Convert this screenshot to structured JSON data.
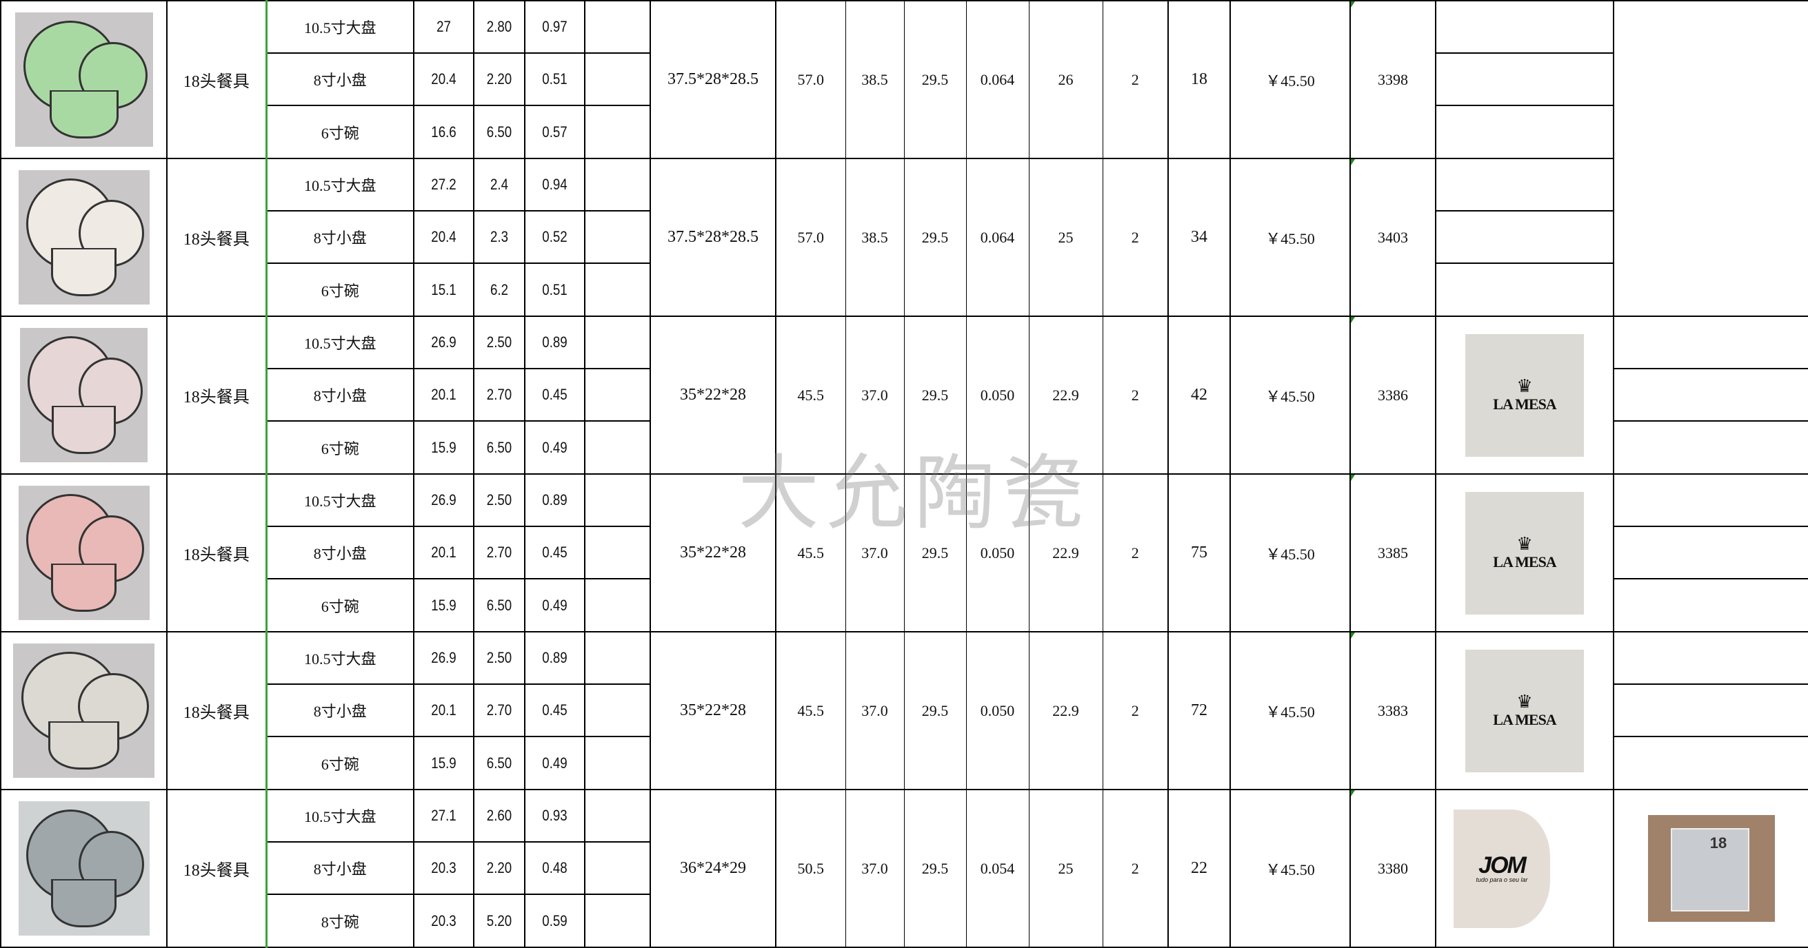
{
  "watermark": "大允陶瓷",
  "colors": {
    "item_border": "#3aa43a",
    "comment_marker": "#1a8a1a"
  },
  "groups": [
    {
      "photo_color": "#a9d9a3",
      "name": "18头餐具",
      "items": [
        {
          "name": "10.5寸大盘",
          "a": "27",
          "b": "2.80",
          "c": "0.97"
        },
        {
          "name": "8寸小盘",
          "a": "20.4",
          "b": "2.20",
          "c": "0.51"
        },
        {
          "name": "6寸碗",
          "a": "16.6",
          "b": "6.50",
          "c": "0.57"
        }
      ],
      "carton": "37.5*28*28.5",
      "v1": "57.0",
      "v2": "38.5",
      "v3": "29.5",
      "cbm": "0.064",
      "weight": "26",
      "qty": "2",
      "stock": "18",
      "price": "￥45.50",
      "code": "3398",
      "logo": null,
      "extra": null
    },
    {
      "photo_color": "#efeae4",
      "name": "18头餐具",
      "items": [
        {
          "name": "10.5寸大盘",
          "a": "27.2",
          "b": "2.4",
          "c": "0.94"
        },
        {
          "name": "8寸小盘",
          "a": "20.4",
          "b": "2.3",
          "c": "0.52"
        },
        {
          "name": "6寸碗",
          "a": "15.1",
          "b": "6.2",
          "c": "0.51"
        }
      ],
      "carton": "37.5*28*28.5",
      "v1": "57.0",
      "v2": "38.5",
      "v3": "29.5",
      "cbm": "0.064",
      "weight": "25",
      "qty": "2",
      "stock": "34",
      "price": "￥45.50",
      "code": "3403",
      "logo": null,
      "extra": null
    },
    {
      "photo_color": "#e6d6d6",
      "name": "18头餐具",
      "items": [
        {
          "name": "10.5寸大盘",
          "a": "26.9",
          "b": "2.50",
          "c": "0.89"
        },
        {
          "name": "8寸小盘",
          "a": "20.1",
          "b": "2.70",
          "c": "0.45"
        },
        {
          "name": "6寸碗",
          "a": "15.9",
          "b": "6.50",
          "c": "0.49"
        }
      ],
      "carton": "35*22*28",
      "v1": "45.5",
      "v2": "37.0",
      "v3": "29.5",
      "cbm": "0.050",
      "weight": "22.9",
      "qty": "2",
      "stock": "42",
      "price": "￥45.50",
      "code": "3386",
      "logo": "LA MESA",
      "extra": null
    },
    {
      "photo_color": "#e8b9b6",
      "name": "18头餐具",
      "items": [
        {
          "name": "10.5寸大盘",
          "a": "26.9",
          "b": "2.50",
          "c": "0.89"
        },
        {
          "name": "8寸小盘",
          "a": "20.1",
          "b": "2.70",
          "c": "0.45"
        },
        {
          "name": "6寸碗",
          "a": "15.9",
          "b": "6.50",
          "c": "0.49"
        }
      ],
      "carton": "35*22*28",
      "v1": "45.5",
      "v2": "37.0",
      "v3": "29.5",
      "cbm": "0.050",
      "weight": "22.9",
      "qty": "2",
      "stock": "75",
      "price": "￥45.50",
      "code": "3385",
      "logo": "LA MESA",
      "extra": null
    },
    {
      "photo_color": "#dcd8d2",
      "name": "18头餐具",
      "items": [
        {
          "name": "10.5寸大盘",
          "a": "26.9",
          "b": "2.50",
          "c": "0.89"
        },
        {
          "name": "8寸小盘",
          "a": "20.1",
          "b": "2.70",
          "c": "0.45"
        },
        {
          "name": "6寸碗",
          "a": "15.9",
          "b": "6.50",
          "c": "0.49"
        }
      ],
      "carton": "35*22*28",
      "v1": "45.5",
      "v2": "37.0",
      "v3": "29.5",
      "cbm": "0.050",
      "weight": "22.9",
      "qty": "2",
      "stock": "72",
      "price": "￥45.50",
      "code": "3383",
      "logo": "LA MESA",
      "extra": null
    },
    {
      "photo_color": "#9fa7aa",
      "name": "18头餐具",
      "items": [
        {
          "name": "10.5寸大盘",
          "a": "27.1",
          "b": "2.60",
          "c": "0.93"
        },
        {
          "name": "8寸小盘",
          "a": "20.3",
          "b": "2.20",
          "c": "0.48"
        },
        {
          "name": "8寸碗",
          "a": "20.3",
          "b": "5.20",
          "c": "0.59"
        }
      ],
      "carton": "36*24*29",
      "v1": "50.5",
      "v2": "37.0",
      "v3": "29.5",
      "cbm": "0.054",
      "weight": "25",
      "qty": "2",
      "stock": "22",
      "price": "￥45.50",
      "code": "3380",
      "logo": "JOM",
      "logo_sub": "tudo para o seu lar",
      "extra": {
        "box_label": "18"
      }
    }
  ]
}
